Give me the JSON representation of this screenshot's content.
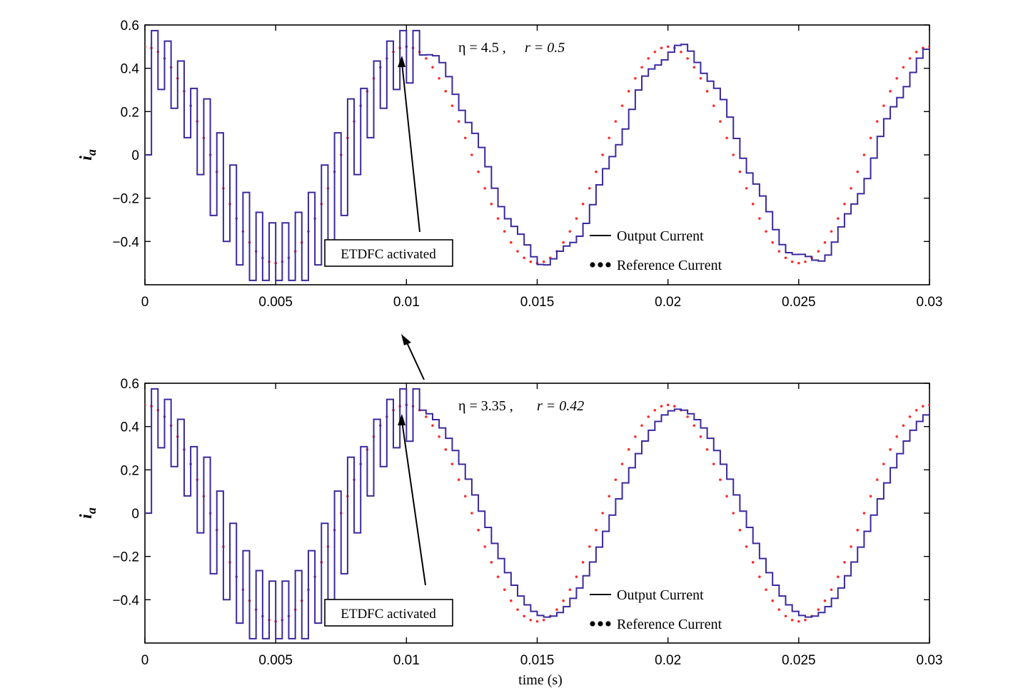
{
  "chart_data": [
    {
      "type": "line",
      "title": "",
      "xlabel": "",
      "ylabel": "i",
      "ylabel_sub": "a",
      "xlim": [
        0,
        0.03
      ],
      "ylim": [
        -0.6,
        0.6
      ],
      "grid": false,
      "legend_position": "bottom-right",
      "x_ticks": [
        "0",
        "0.005",
        "0.01",
        "0.015",
        "0.02",
        "0.025",
        "0.03"
      ],
      "y_ticks": [
        "0.6",
        "0.4",
        "0.2",
        "0",
        "−0.2",
        "−0.4"
      ],
      "annotation": {
        "eta_label": "η = 4.5 ,",
        "r_label": "r = 0.5",
        "box_label": "ETDFC activated"
      },
      "reference": {
        "amplitude": 0.5,
        "frequency_hz": 100,
        "phase": "cosine",
        "sample_step": 0.00025
      },
      "output": {
        "sample_step": 0.00025,
        "switching_until": 0.0105,
        "switching_amplitude": 0.55,
        "phase_lag": 0.00028,
        "steady_amplitude": 0.49,
        "steady_ripple": 0.025
      },
      "series": [
        {
          "name": "Output Current",
          "color": "#3a2a9e",
          "style": "solid-step"
        },
        {
          "name": "Reference Current",
          "color": "#ff2a2a",
          "style": "dotted"
        }
      ],
      "legend": {
        "output_label": "Output Current",
        "reference_label": "Reference Current"
      }
    },
    {
      "type": "line",
      "title": "",
      "xlabel": "time (s)",
      "ylabel": "i",
      "ylabel_sub": "a",
      "xlim": [
        0,
        0.03
      ],
      "ylim": [
        -0.6,
        0.6
      ],
      "grid": false,
      "legend_position": "bottom-right",
      "x_ticks": [
        "0",
        "0.005",
        "0.01",
        "0.015",
        "0.02",
        "0.025",
        "0.03"
      ],
      "y_ticks": [
        "0.6",
        "0.4",
        "0.2",
        "0",
        "−0.2",
        "−0.4"
      ],
      "annotation": {
        "eta_label": "η = 3.35 ,",
        "r_label": "r = 0.42",
        "box_label": "ETDFC activated"
      },
      "reference": {
        "amplitude": 0.5,
        "frequency_hz": 100,
        "phase": "cosine",
        "sample_step": 0.00025
      },
      "output": {
        "sample_step": 0.00025,
        "switching_until": 0.0105,
        "switching_amplitude": 0.55,
        "phase_lag": 0.00028,
        "steady_amplitude": 0.48,
        "steady_ripple": 0.0
      },
      "series": [
        {
          "name": "Output Current",
          "color": "#3a2a9e",
          "style": "solid-step"
        },
        {
          "name": "Reference Current",
          "color": "#ff2a2a",
          "style": "dotted"
        }
      ],
      "legend": {
        "output_label": "Output Current",
        "reference_label": "Reference Current"
      }
    }
  ]
}
